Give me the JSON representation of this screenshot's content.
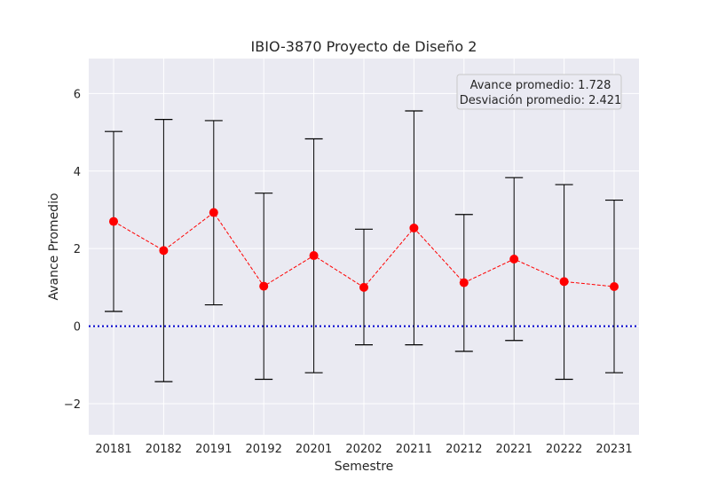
{
  "chart_data": {
    "type": "scatter",
    "title": "IBIO-3870 Proyecto de Diseño 2",
    "xlabel": "Semestre",
    "ylabel": "Avance Promedio",
    "categories": [
      "20181",
      "20182",
      "20191",
      "20192",
      "20201",
      "20202",
      "20211",
      "20212",
      "20221",
      "20222",
      "20231"
    ],
    "values": [
      2.7,
      1.95,
      2.93,
      1.03,
      1.82,
      1.0,
      2.53,
      1.12,
      1.73,
      1.15,
      1.02
    ],
    "error_low": [
      0.38,
      -1.43,
      0.55,
      -1.37,
      -1.2,
      -0.48,
      -0.48,
      -0.65,
      -0.37,
      -1.37,
      -1.2
    ],
    "error_high": [
      5.02,
      5.33,
      5.3,
      3.43,
      4.83,
      2.5,
      5.55,
      2.88,
      3.83,
      3.65,
      3.25
    ],
    "reference_line": {
      "y": 0,
      "color": "#0000cc",
      "style": "dotted"
    },
    "ylim": [
      -2.8,
      6.9
    ],
    "yticks": [
      -2,
      0,
      2,
      4,
      6
    ],
    "ytick_labels": [
      "−2",
      "0",
      "2",
      "4",
      "6"
    ],
    "grid": true,
    "legend_position": "top-right",
    "annotation_lines": [
      "Avance promedio: 1.728",
      "Desviación promedio: 2.421"
    ],
    "colors": {
      "marker": "#ff0000",
      "line": "#ff0000",
      "errorbar": "#000000",
      "plot_background": "#eaeaf2",
      "grid": "#ffffff"
    }
  }
}
